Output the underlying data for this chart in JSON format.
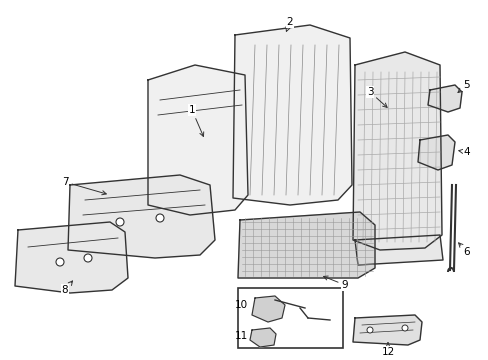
{
  "title": "",
  "background_color": "#ffffff",
  "line_color": "#333333",
  "label_color": "#000000",
  "figsize": [
    4.89,
    3.6
  ],
  "dpi": 100
}
